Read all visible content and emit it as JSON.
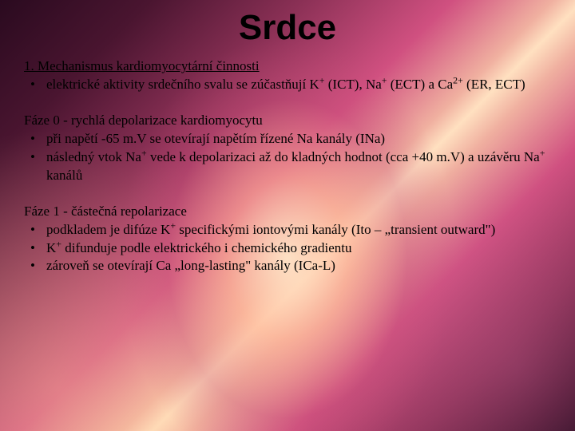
{
  "colors": {
    "text": "#000000",
    "bg_dark": "#2a0a1f",
    "bg_mid": "#8a3055",
    "bg_light": "#ffe0c0",
    "bg_glow": "#f0b0a0"
  },
  "typography": {
    "title_font": "Comic Sans MS",
    "title_size_pt": 33,
    "body_font": "Georgia",
    "body_size_pt": 13
  },
  "title": "Srdce",
  "section1": {
    "heading": "1. Mechanismus kardiomyocytární činnosti",
    "bullets": [
      "elektrické aktivity srdečního svalu se zúčastňují K⁺ (ICT), Na⁺ (ECT) a Ca²⁺ (ER, ECT)"
    ]
  },
  "phase0": {
    "heading": "Fáze 0 - rychlá depolarizace kardiomyocytu",
    "bullets": [
      "při napětí -65 m.V se otevírají napětím řízené Na kanály (INa)",
      "následný vtok Na⁺ vede k depolarizaci až do kladných hodnot (cca +40 m.V) a uzávěru Na⁺ kanálů"
    ]
  },
  "phase1": {
    "heading": "Fáze 1 - částečná repolarizace",
    "bullets": [
      "podkladem je difúze K⁺ specifickými iontovými kanály (Ito – „transient outward\")",
      "K⁺ difunduje podle elektrického i chemického gradientu",
      "zároveň se otevírají Ca „long-lasting\" kanály (ICa-L)"
    ]
  }
}
